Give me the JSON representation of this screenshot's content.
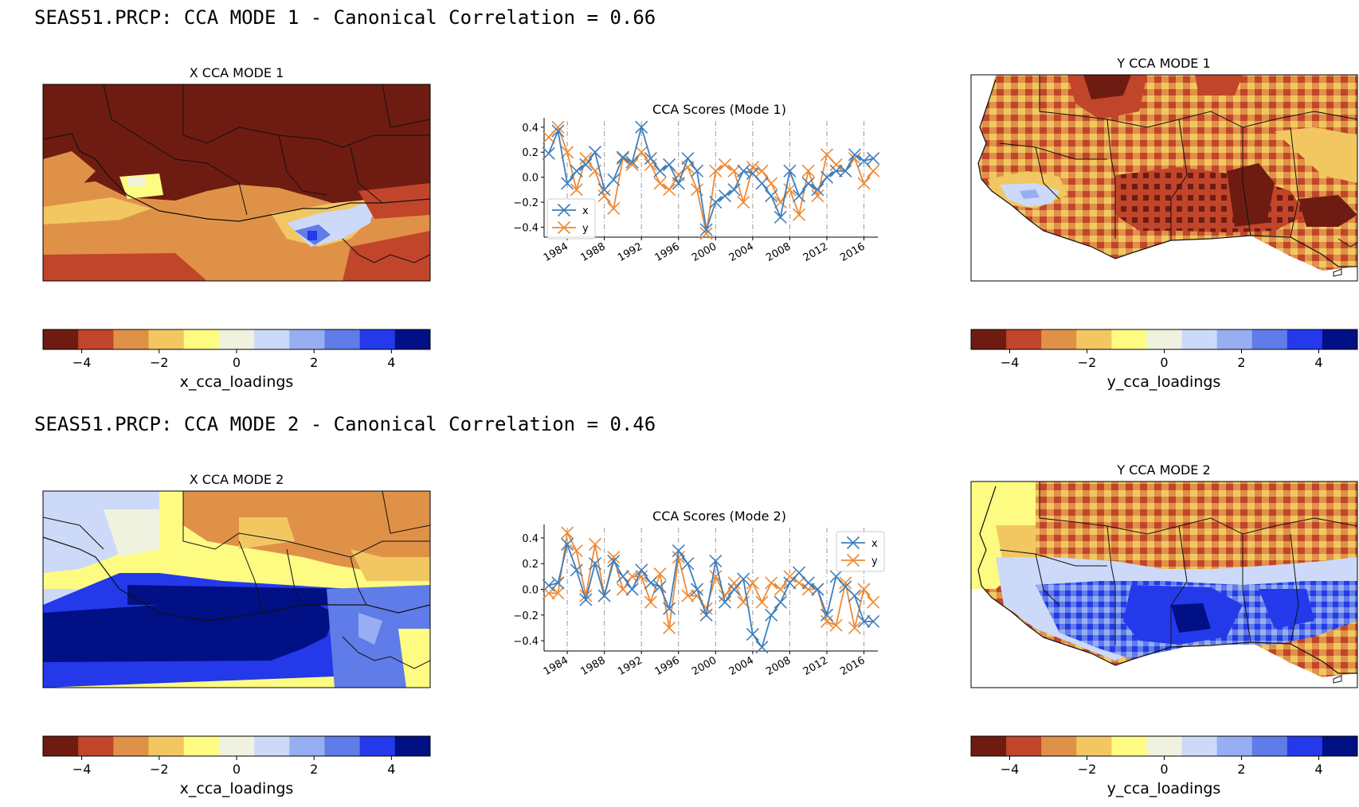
{
  "modes": [
    {
      "title": "SEAS51.PRCP: CCA MODE 1 - Canonical Correlation = 0.66",
      "x_map_title": "X CCA MODE 1",
      "y_map_title": "Y CCA MODE 1",
      "x_colorbar_label": "x_cca_loadings",
      "y_colorbar_label": "y_cca_loadings"
    },
    {
      "title": "SEAS51.PRCP: CCA MODE 2 - Canonical Correlation = 0.46",
      "x_map_title": "X CCA MODE 2",
      "y_map_title": "Y CCA MODE 2",
      "x_colorbar_label": "x_cca_loadings",
      "y_colorbar_label": "y_cca_loadings"
    }
  ],
  "colormap": [
    "#6e1c12",
    "#c1452a",
    "#e09148",
    "#f2c761",
    "#fdfb82",
    "#eff2df",
    "#ccd9f8",
    "#97aff2",
    "#607ce8",
    "#2439e9",
    "#011085"
  ],
  "colorbar_ticks": [
    "−4",
    "−2",
    "0",
    "2",
    "4"
  ],
  "colorbar_range": [
    -5,
    5
  ],
  "series_colors": {
    "x": "#3f7fbc",
    "y": "#ee8a35"
  },
  "chart_data": [
    {
      "type": "line",
      "title": "CCA Scores (Mode 1)",
      "x": [
        1982,
        1983,
        1984,
        1985,
        1986,
        1987,
        1988,
        1989,
        1990,
        1991,
        1992,
        1993,
        1994,
        1995,
        1996,
        1997,
        1998,
        1999,
        2000,
        2001,
        2002,
        2003,
        2004,
        2005,
        2006,
        2007,
        2008,
        2009,
        2010,
        2011,
        2012,
        2013,
        2014,
        2015,
        2016,
        2017
      ],
      "series": [
        {
          "name": "x",
          "values": [
            0.19,
            0.37,
            -0.05,
            0.05,
            0.1,
            0.2,
            -0.1,
            -0.02,
            0.16,
            0.12,
            0.4,
            0.15,
            0.05,
            0.1,
            -0.05,
            0.15,
            0.05,
            -0.42,
            -0.2,
            -0.15,
            -0.1,
            0.05,
            0.03,
            -0.05,
            -0.15,
            -0.32,
            0.05,
            -0.15,
            -0.05,
            -0.1,
            0.0,
            0.05,
            0.05,
            0.18,
            0.13,
            0.15
          ]
        },
        {
          "name": "y",
          "values": [
            0.32,
            0.4,
            0.2,
            -0.1,
            0.15,
            0.05,
            -0.15,
            -0.25,
            0.15,
            0.1,
            0.2,
            0.1,
            -0.05,
            -0.1,
            0.02,
            0.08,
            -0.1,
            -0.45,
            0.05,
            0.1,
            0.05,
            -0.2,
            0.08,
            0.05,
            -0.05,
            -0.2,
            -0.1,
            -0.3,
            0.05,
            -0.15,
            0.18,
            0.1,
            0.05,
            0.15,
            -0.05,
            0.05
          ]
        }
      ],
      "xticks": [
        "1984",
        "1988",
        "1992",
        "1996",
        "2000",
        "2004",
        "2008",
        "2012",
        "2016"
      ],
      "yticks": [
        "−0.4",
        "−0.2",
        "0.0",
        "0.2",
        "0.4"
      ],
      "ylim": [
        -0.48,
        0.45
      ],
      "legend": "lower left"
    },
    {
      "type": "line",
      "title": "CCA Scores (Mode 2)",
      "x": [
        1982,
        1983,
        1984,
        1985,
        1986,
        1987,
        1988,
        1989,
        1990,
        1991,
        1992,
        1993,
        1994,
        1995,
        1996,
        1997,
        1998,
        1999,
        2000,
        2001,
        2002,
        2003,
        2004,
        2005,
        2006,
        2007,
        2008,
        2009,
        2010,
        2011,
        2012,
        2013,
        2014,
        2015,
        2016,
        2017
      ],
      "series": [
        {
          "name": "x",
          "values": [
            0.03,
            0.05,
            0.35,
            0.15,
            -0.08,
            0.2,
            -0.05,
            0.22,
            0.1,
            0.0,
            0.15,
            0.05,
            0.02,
            -0.15,
            0.3,
            0.2,
            0.0,
            -0.2,
            0.22,
            -0.1,
            0.0,
            0.08,
            -0.35,
            -0.45,
            -0.2,
            -0.1,
            0.05,
            0.13,
            0.05,
            0.0,
            -0.2,
            0.1,
            0.02,
            -0.05,
            -0.25,
            -0.25
          ]
        },
        {
          "name": "y",
          "values": [
            -0.03,
            -0.03,
            0.44,
            0.3,
            -0.05,
            0.35,
            -0.05,
            0.25,
            0.0,
            0.1,
            0.1,
            -0.1,
            0.12,
            -0.3,
            0.25,
            -0.05,
            -0.05,
            -0.15,
            0.1,
            -0.05,
            0.05,
            -0.1,
            0.05,
            -0.1,
            0.05,
            0.0,
            0.1,
            0.05,
            0.0,
            0.0,
            -0.25,
            -0.28,
            0.05,
            -0.3,
            0.0,
            -0.1
          ]
        }
      ],
      "xticks": [
        "1984",
        "1988",
        "1992",
        "1996",
        "2000",
        "2004",
        "2008",
        "2012",
        "2016"
      ],
      "yticks": [
        "−0.4",
        "−0.2",
        "0.0",
        "0.2",
        "0.4"
      ],
      "ylim": [
        -0.48,
        0.48
      ],
      "legend": "upper right"
    }
  ]
}
